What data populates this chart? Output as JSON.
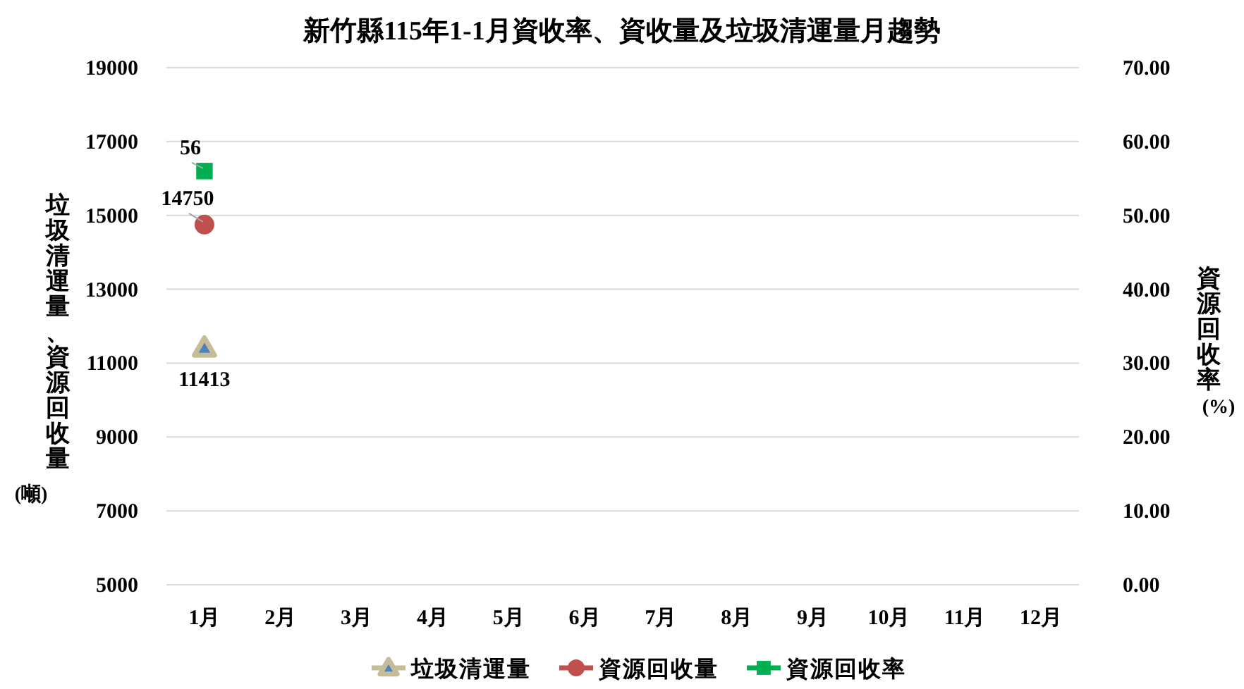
{
  "chart_data": {
    "type": "line",
    "title": "新竹縣115年1-1月資收率、資收量及垃圾清運量月趨勢",
    "ylabel": "垃圾清運量、資源回收量(噸)",
    "y2label": "資源回收率(%)",
    "categories": [
      "1月",
      "2月",
      "3月",
      "4月",
      "5月",
      "6月",
      "7月",
      "8月",
      "9月",
      "10月",
      "11月",
      "12月"
    ],
    "series": [
      {
        "name": "垃圾清運量",
        "color": "#c4bd97",
        "marker": "triangle",
        "values": [
          11413,
          null,
          null,
          null,
          null,
          null,
          null,
          null,
          null,
          null,
          null,
          null
        ]
      },
      {
        "name": "資源回收量",
        "color": "#c0504d",
        "marker": "circle",
        "values": [
          14750,
          null,
          null,
          null,
          null,
          null,
          null,
          null,
          null,
          null,
          null,
          null
        ]
      },
      {
        "name": "資源回收率",
        "color": "#00b050",
        "marker": "square",
        "axis": "y2",
        "values": [
          56,
          null,
          null,
          null,
          null,
          null,
          null,
          null,
          null,
          null,
          null,
          null
        ]
      }
    ],
    "ylim": [
      5000,
      19000
    ],
    "yticks": [
      5000,
      7000,
      9000,
      11000,
      13000,
      15000,
      17000,
      19000
    ],
    "y2lim": [
      0,
      70
    ],
    "y2ticks": [
      {
        "value": 0,
        "label": "0.00"
      },
      {
        "value": 10,
        "label": "10.00"
      },
      {
        "value": 20,
        "label": "20.00"
      },
      {
        "value": 30,
        "label": "30.00"
      },
      {
        "value": 40,
        "label": "40.00"
      },
      {
        "value": 50,
        "label": "50.00"
      },
      {
        "value": 60,
        "label": "60.00"
      },
      {
        "value": 70,
        "label": "70.00"
      }
    ],
    "grid": "y",
    "legend": "bottom",
    "data_labels": true
  }
}
